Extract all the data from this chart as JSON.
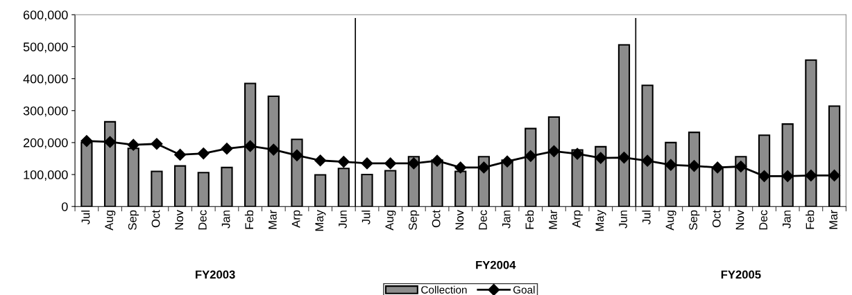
{
  "chart_data": {
    "type": "bar",
    "categories": [
      "Jul",
      "Aug",
      "Sep",
      "Oct",
      "Nov",
      "Dec",
      "Jan",
      "Feb",
      "Mar",
      "Arp",
      "May",
      "Jun",
      "Jul",
      "Aug",
      "Sep",
      "Oct",
      "Nov",
      "Dec",
      "Jan",
      "Feb",
      "Mar",
      "Arp",
      "May",
      "Jun",
      "Jul",
      "Aug",
      "Sep",
      "Oct",
      "Nov",
      "Dec",
      "Jan",
      "Feb",
      "Mar"
    ],
    "series": [
      {
        "name": "Collection",
        "color": "#8c8c8c",
        "values": [
          200000,
          265000,
          182000,
          110000,
          127000,
          106000,
          122000,
          385000,
          345000,
          210000,
          99000,
          119000,
          100000,
          112000,
          156000,
          145000,
          110000,
          156000,
          145000,
          244000,
          280000,
          177000,
          187000,
          506000,
          379000,
          200000,
          232000,
          122000,
          156000,
          223000,
          258000,
          458000,
          314000
        ]
      },
      {
        "name": "Goal",
        "type": "line",
        "color": "#000000",
        "values": [
          205000,
          202000,
          193000,
          196000,
          162000,
          166000,
          181000,
          189000,
          178000,
          160000,
          144000,
          140000,
          135000,
          135000,
          135000,
          143000,
          122000,
          122000,
          141000,
          158000,
          173000,
          165000,
          152000,
          153000,
          143000,
          130000,
          127000,
          122000,
          125000,
          95000,
          95000,
          97000,
          97000
        ]
      }
    ],
    "annotations": [
      "FY2003",
      "FY2004",
      "FY2005"
    ],
    "ylim": [
      0,
      600000
    ],
    "yticks": [
      {
        "value": 0,
        "label": "0"
      },
      {
        "value": 100000,
        "label": "100,000"
      },
      {
        "value": 200000,
        "label": "200,000"
      },
      {
        "value": 300000,
        "label": "300,000"
      },
      {
        "value": 400000,
        "label": "400,000"
      },
      {
        "value": 500000,
        "label": "500,000"
      },
      {
        "value": 600000,
        "label": "600,000"
      }
    ],
    "marker": "diamond",
    "line_style": "solid",
    "legend": "bottom",
    "grid": false
  }
}
